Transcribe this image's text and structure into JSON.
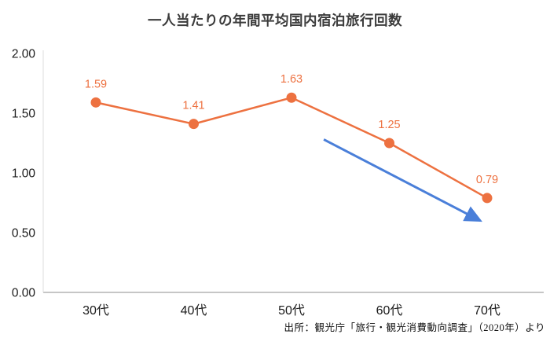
{
  "title": "一人当たりの年間平均国内宿泊旅行回数",
  "source_note": "出所：観光庁「旅行・観光消費動向調査」（2020年）より",
  "chart_data": {
    "type": "line",
    "title": "一人当たりの年間平均国内宿泊旅行回数",
    "categories": [
      "30代",
      "40代",
      "50代",
      "60代",
      "70代"
    ],
    "values": [
      1.59,
      1.41,
      1.63,
      1.25,
      0.79
    ],
    "data_labels": [
      "1.59",
      "1.41",
      "1.63",
      "1.25",
      "0.79"
    ],
    "ylim": [
      0,
      2.0
    ],
    "ytick_values": [
      0,
      0.5,
      1.0,
      1.5,
      2.0
    ],
    "ytick_labels": [
      "0.00",
      "0.50",
      "1.00",
      "1.50",
      "2.00"
    ],
    "grid": false,
    "legend_position": "none",
    "line_color": "#ed7140",
    "marker_color": "#ed7140",
    "data_label_color": "#ed7140",
    "axis_color": "#b3b3b3",
    "tick_label_color": "#1a1a1a",
    "annotation_arrow": {
      "color": "#4a7fd9",
      "from": {
        "x_index": 2.33,
        "value": 1.28
      },
      "to": {
        "x_index": 3.93,
        "value": 0.6
      }
    }
  }
}
